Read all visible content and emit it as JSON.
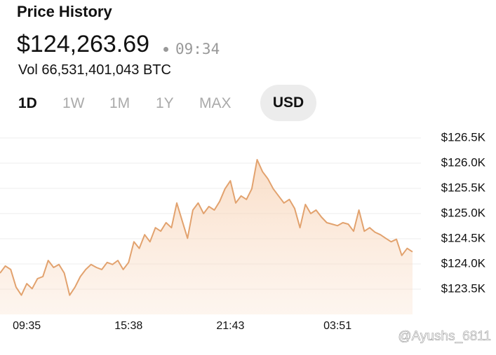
{
  "header": {
    "title": "Price History",
    "price": "$124,263.69",
    "time": "09:34",
    "volume": "Vol 66,531,401,043 BTC"
  },
  "tabs": [
    "1D",
    "1W",
    "1M",
    "1Y",
    "MAX"
  ],
  "active_tab": "1D",
  "currency": "USD",
  "chart_data": {
    "type": "line",
    "color": "#e2a26e",
    "categories": [
      null,
      null,
      null,
      null,
      null,
      "09:35",
      null,
      null,
      null,
      null,
      null,
      null,
      null,
      null,
      null,
      null,
      null,
      null,
      null,
      null,
      null,
      null,
      null,
      null,
      "15:38",
      null,
      null,
      null,
      null,
      null,
      null,
      null,
      null,
      null,
      null,
      null,
      null,
      null,
      null,
      null,
      null,
      null,
      null,
      "21:43",
      null,
      null,
      null,
      null,
      null,
      null,
      null,
      null,
      null,
      null,
      null,
      null,
      null,
      null,
      null,
      null,
      null,
      null,
      null,
      "03:51",
      null,
      null,
      null,
      null,
      null,
      null,
      null,
      null,
      null,
      null,
      null,
      null,
      null,
      null
    ],
    "values": [
      123820,
      123960,
      123890,
      123540,
      123380,
      123610,
      123510,
      123710,
      123750,
      124070,
      123930,
      123990,
      123820,
      123380,
      123540,
      123750,
      123890,
      123990,
      123930,
      123890,
      124030,
      123990,
      124070,
      123890,
      124030,
      124440,
      124310,
      124580,
      124440,
      124720,
      124650,
      124820,
      124720,
      125210,
      124860,
      124510,
      125070,
      125210,
      125000,
      125140,
      125070,
      125240,
      125490,
      125650,
      125210,
      125350,
      125280,
      125490,
      126070,
      125830,
      125690,
      125490,
      125350,
      125210,
      125280,
      125100,
      124720,
      125180,
      125000,
      125070,
      124930,
      124820,
      124790,
      124760,
      124820,
      124790,
      124650,
      125070,
      124650,
      124720,
      124630,
      124580,
      124510,
      124440,
      124490,
      124170,
      124310,
      124240
    ],
    "ylim": [
      123000,
      126750
    ],
    "yticks": [
      {
        "value": 123500,
        "label": "$123.5K"
      },
      {
        "value": 124000,
        "label": "$124.0K"
      },
      {
        "value": 124500,
        "label": "$124.5K"
      },
      {
        "value": 125000,
        "label": "$125.0K"
      },
      {
        "value": 125500,
        "label": "$125.5K"
      },
      {
        "value": 126000,
        "label": "$126.0K"
      },
      {
        "value": 126500,
        "label": "$126.5K"
      }
    ],
    "grid": true
  },
  "watermark": "@Ayushs_6811"
}
